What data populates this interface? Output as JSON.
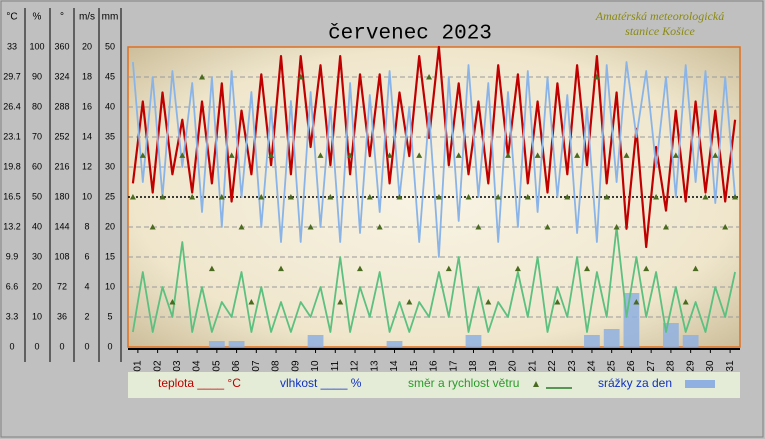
{
  "chart_data": {
    "type": "line",
    "title": "červenec 2023",
    "station": [
      "Amatérská meteorologická",
      "stanice Košice"
    ],
    "xlim": [
      1,
      32
    ],
    "xticks": [
      {
        "value": 1.5,
        "label": "01"
      },
      {
        "value": 2.5,
        "label": "02"
      },
      {
        "value": 3.5,
        "label": "03"
      },
      {
        "value": 4.5,
        "label": "04"
      },
      {
        "value": 5.5,
        "label": "05"
      },
      {
        "value": 6.5,
        "label": "06"
      },
      {
        "value": 7.5,
        "label": "07"
      },
      {
        "value": 8.5,
        "label": "08"
      },
      {
        "value": 9.5,
        "label": "09"
      },
      {
        "value": 10.5,
        "label": "10"
      },
      {
        "value": 11.5,
        "label": "11"
      },
      {
        "value": 12.5,
        "label": "12"
      },
      {
        "value": 13.5,
        "label": "13"
      },
      {
        "value": 14.5,
        "label": "14"
      },
      {
        "value": 15.5,
        "label": "15"
      },
      {
        "value": 16.5,
        "label": "16"
      },
      {
        "value": 17.5,
        "label": "17"
      },
      {
        "value": 18.5,
        "label": "18"
      },
      {
        "value": 19.5,
        "label": "19"
      },
      {
        "value": 20.5,
        "label": "20"
      },
      {
        "value": 21.5,
        "label": "21"
      },
      {
        "value": 22.5,
        "label": "22"
      },
      {
        "value": 23.5,
        "label": "23"
      },
      {
        "value": 24.5,
        "label": "24"
      },
      {
        "value": 25.5,
        "label": "25"
      },
      {
        "value": 26.5,
        "label": "26"
      },
      {
        "value": 27.5,
        "label": "27"
      },
      {
        "value": 28.5,
        "label": "28"
      },
      {
        "value": 29.5,
        "label": "29"
      },
      {
        "value": 30.5,
        "label": "30"
      },
      {
        "value": 31.5,
        "label": "31"
      }
    ],
    "axes": [
      {
        "label": "°C",
        "ylim": [
          0,
          33
        ],
        "yticks": [
          0,
          3.3,
          6.6,
          9.9,
          13.2,
          16.5,
          19.8,
          23.1,
          26.4,
          29.7,
          33
        ]
      },
      {
        "label": "%",
        "ylim": [
          0,
          100
        ],
        "yticks": [
          0,
          10,
          20,
          30,
          40,
          50,
          60,
          70,
          80,
          90,
          100
        ]
      },
      {
        "label": "°",
        "ylim": [
          0,
          360
        ],
        "yticks": [
          0,
          36,
          72,
          108,
          144,
          180,
          216,
          252,
          288,
          324,
          360
        ]
      },
      {
        "label": "m/s",
        "ylim": [
          0,
          20
        ],
        "yticks": [
          0,
          2,
          4,
          6,
          8,
          10,
          12,
          14,
          16,
          18,
          20
        ]
      },
      {
        "label": "mm",
        "ylim": [
          0,
          50
        ],
        "yticks": [
          0,
          5,
          10,
          15,
          20,
          25,
          30,
          35,
          40,
          45,
          50
        ]
      }
    ],
    "grid": true,
    "x": [
      1.25,
      1.75,
      2.25,
      2.75,
      3.25,
      3.75,
      4.25,
      4.75,
      5.25,
      5.75,
      6.25,
      6.75,
      7.25,
      7.75,
      8.25,
      8.75,
      9.25,
      9.75,
      10.25,
      10.75,
      11.25,
      11.75,
      12.25,
      12.75,
      13.25,
      13.75,
      14.25,
      14.75,
      15.25,
      15.75,
      16.25,
      16.75,
      17.25,
      17.75,
      18.25,
      18.75,
      19.25,
      19.75,
      20.25,
      20.75,
      21.25,
      21.75,
      22.25,
      22.75,
      23.25,
      23.75,
      24.25,
      24.75,
      25.25,
      25.75,
      26.25,
      26.75,
      27.25,
      27.75,
      28.25,
      28.75,
      29.25,
      29.75,
      30.25,
      30.75,
      31.25,
      31.75
    ],
    "series": [
      {
        "name": "teplota ____ °C",
        "kind": "line",
        "axis": 0,
        "color": "#c00000",
        "values": [
          18,
          27,
          17,
          28,
          19,
          25,
          17,
          27,
          18,
          29,
          16,
          26,
          19,
          30,
          20,
          32,
          19,
          32,
          22,
          31,
          20,
          32,
          19,
          30,
          21,
          30,
          18,
          28,
          21,
          32,
          23,
          33,
          20,
          29,
          19,
          27,
          18,
          31,
          21,
          30,
          18,
          27,
          17,
          29,
          19,
          31,
          20,
          32,
          18,
          28,
          13,
          24,
          11,
          22,
          15,
          26,
          16,
          27,
          17,
          26,
          16,
          25
        ]
      },
      {
        "name": "vlhkost ____ %",
        "kind": "line",
        "axis": 1,
        "color": "#8ab4e8",
        "values": [
          95,
          55,
          90,
          50,
          92,
          60,
          88,
          45,
          90,
          40,
          92,
          50,
          85,
          40,
          80,
          35,
          82,
          35,
          85,
          40,
          80,
          35,
          88,
          38,
          84,
          45,
          92,
          50,
          80,
          35,
          78,
          30,
          90,
          42,
          94,
          50,
          88,
          35,
          85,
          40,
          92,
          45,
          90,
          50,
          84,
          38,
          80,
          35,
          94,
          55,
          95,
          70,
          92,
          60,
          90,
          50,
          94,
          55,
          92,
          48,
          90,
          50
        ]
      },
      {
        "name": "směr a rychlost větru",
        "kind": "line",
        "axis": 3,
        "color": "#5cc080",
        "values": [
          1,
          5,
          1,
          4,
          2,
          7,
          1,
          4,
          1,
          3,
          2,
          5,
          1,
          4,
          1,
          3,
          1,
          3,
          2,
          4,
          1,
          6,
          1,
          4,
          2,
          5,
          1,
          3,
          1,
          3,
          2,
          5,
          2,
          6,
          1,
          4,
          1,
          3,
          2,
          5,
          2,
          6,
          1,
          4,
          2,
          6,
          1,
          5,
          2,
          8,
          2,
          6,
          2,
          5,
          1,
          4,
          1,
          3,
          1,
          4,
          2,
          5
        ]
      },
      {
        "kind": "scatter",
        "axis": 2,
        "color": "#4a6a20",
        "values": [
          180,
          230,
          144,
          180,
          54,
          230,
          180,
          324,
          94,
          180,
          230,
          144,
          54,
          180,
          230,
          94,
          180,
          324,
          144,
          230,
          180,
          54,
          230,
          94,
          180,
          144,
          230,
          180,
          54,
          230,
          324,
          180,
          94,
          230,
          180,
          144,
          54,
          180,
          230,
          94,
          180,
          230,
          144,
          54,
          180,
          230,
          94,
          324,
          180,
          144,
          230,
          54,
          94,
          180,
          144,
          230,
          54,
          94,
          180,
          230,
          144,
          180
        ]
      },
      {
        "name": "srážky za den",
        "kind": "bar",
        "axis": 4,
        "color": "#8fb0e0",
        "x": [
          1.5,
          2.5,
          3.5,
          4.5,
          5.5,
          6.5,
          7.5,
          8.5,
          9.5,
          10.5,
          11.5,
          12.5,
          13.5,
          14.5,
          15.5,
          16.5,
          17.5,
          18.5,
          19.5,
          20.5,
          21.5,
          22.5,
          23.5,
          24.5,
          25.5,
          26.5,
          27.5,
          28.5,
          29.5,
          30.5,
          31.5
        ],
        "values": [
          0,
          0,
          0,
          0,
          1,
          1,
          0,
          0,
          0,
          2,
          0,
          0,
          0,
          1,
          0,
          0,
          0,
          2,
          0,
          0,
          0,
          0,
          0,
          2,
          3,
          9,
          0,
          4,
          2,
          0,
          0
        ]
      }
    ]
  }
}
